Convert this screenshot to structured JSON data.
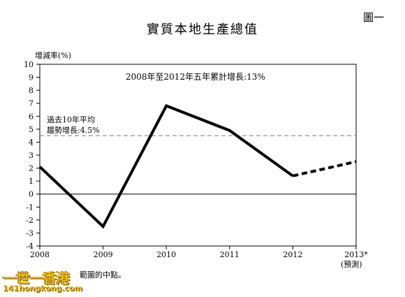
{
  "figure_label": "圖一",
  "title": "實質本地生產總值",
  "y_axis_title": "增減率(%)",
  "annotation_growth": "2008年至2012年五年累計增長:13%",
  "annotation_avg_line1": "過去10年平均",
  "annotation_avg_line2": "趨勢增長:4.5%",
  "forecast_label": "(預測)",
  "footnote": "範圍的中點。",
  "watermark_line1": "一世一香港",
  "watermark_line2": "141hongkong.com",
  "colors": {
    "series": "#000000",
    "average_line": "#777777",
    "axis": "#000000"
  },
  "chart_data": {
    "type": "line",
    "title": "實質本地生產總值",
    "ylabel": "增減率(%)",
    "xlabel": "",
    "ylim": [
      -4,
      10
    ],
    "y_ticks": [
      -4,
      -3,
      -2,
      -1,
      0,
      1,
      2,
      3,
      4,
      5,
      6,
      7,
      8,
      9,
      10
    ],
    "x_tick_labels": [
      "2008",
      "2009",
      "2010",
      "2011",
      "2012",
      "2013*"
    ],
    "series": [
      {
        "style": "solid",
        "x": [
          "2008",
          "2009",
          "2010",
          "2011",
          "2012"
        ],
        "values": [
          2.1,
          -2.5,
          6.8,
          4.9,
          1.4
        ]
      },
      {
        "style": "dashed",
        "x": [
          "2012",
          "2013*"
        ],
        "values": [
          1.4,
          2.5
        ]
      }
    ],
    "reference_lines": [
      {
        "value": 4.5,
        "style": "dashed"
      },
      {
        "value": 0,
        "style": "solid"
      }
    ],
    "grid": false,
    "legend": "none"
  }
}
